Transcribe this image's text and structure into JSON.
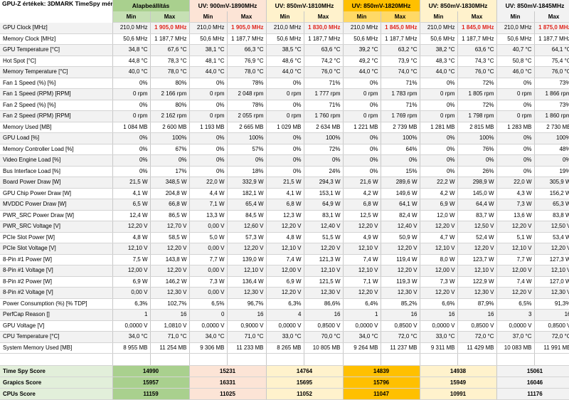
{
  "title": "GPU-Z értékek: 3DMARK TimeSpy mérés",
  "min_label": "Min",
  "max_label": "Max",
  "columns": [
    "Alapbeállítás",
    "UV: 900mV-1890MHz",
    "UV: 850mV-1810MHz",
    "UV: 850mV-1820MHz",
    "UV: 850mV-1830MHz",
    "UV: 850mV-1845MHz"
  ],
  "highlight_color": "#e0241b",
  "header_colors": [
    "#a9d08e",
    "#fce4d6",
    "#fff2cc",
    "#ffc000",
    "#fff2cc",
    "#f2f2f2"
  ],
  "rows": [
    {
      "label": "GPU Clock [MHz]",
      "values": [
        "210,0 MHz",
        "1 905,0 MHz",
        "210,0 MHz",
        "1 905,0 MHz",
        "210,0 MHz",
        "1 830,0 MHz",
        "210,0 MHz",
        "1 845,0 MHz",
        "210,0 MHz",
        "1 845,0 MHz",
        "210,0 MHz",
        "1 875,0 MHz"
      ],
      "highlight_max": true
    },
    {
      "label": "Memory Clock [MHz]",
      "values": [
        "50,6 MHz",
        "1 187,7 MHz",
        "50,6 MHz",
        "1 187,7 MHz",
        "50,6 MHz",
        "1 187,7 MHz",
        "50,6 MHz",
        "1 187,7 MHz",
        "50,6 MHz",
        "1 187,7 MHz",
        "50,6 MHz",
        "1 187,7 MHz"
      ]
    },
    {
      "label": "GPU Temperature [°C]",
      "values": [
        "34,8 °C",
        "67,6 °C",
        "38,1 °C",
        "66,3 °C",
        "38,5 °C",
        "63,6 °C",
        "39,2 °C",
        "63,2 °C",
        "38,2 °C",
        "63,6 °C",
        "40,7 °C",
        "64,1 °C"
      ]
    },
    {
      "label": "Hot Spot [°C]",
      "values": [
        "44,8 °C",
        "78,3 °C",
        "48,1 °C",
        "76,9 °C",
        "48,6 °C",
        "74,2 °C",
        "49,2 °C",
        "73,9 °C",
        "48,3 °C",
        "74,3 °C",
        "50,8 °C",
        "75,4 °C"
      ]
    },
    {
      "label": "Memory Temperature [°C]",
      "values": [
        "40,0 °C",
        "78,0 °C",
        "44,0 °C",
        "78,0 °C",
        "44,0 °C",
        "76,0 °C",
        "44,0 °C",
        "74,0 °C",
        "44,0 °C",
        "76,0 °C",
        "46,0 °C",
        "76,0 °C"
      ]
    },
    {
      "label": "Fan 1 Speed (%) [%]",
      "values": [
        "0%",
        "80%",
        "0%",
        "78%",
        "0%",
        "71%",
        "0%",
        "71%",
        "0%",
        "72%",
        "0%",
        "73%"
      ]
    },
    {
      "label": "Fan 1 Speed (RPM) [RPM]",
      "values": [
        "0 rpm",
        "2 166 rpm",
        "0 rpm",
        "2 048 rpm",
        "0 rpm",
        "1 777 rpm",
        "0 rpm",
        "1 783 rpm",
        "0 rpm",
        "1 805 rpm",
        "0 rpm",
        "1 866 rpm"
      ]
    },
    {
      "label": "Fan 2 Speed (%) [%]",
      "values": [
        "0%",
        "80%",
        "0%",
        "78%",
        "0%",
        "71%",
        "0%",
        "71%",
        "0%",
        "72%",
        "0%",
        "73%"
      ]
    },
    {
      "label": "Fan 2 Speed (RPM) [RPM]",
      "values": [
        "0 rpm",
        "2 162 rpm",
        "0 rpm",
        "2 055 rpm",
        "0 rpm",
        "1 760 rpm",
        "0 rpm",
        "1 769 rpm",
        "0 rpm",
        "1 798 rpm",
        "0 rpm",
        "1 860 rpm"
      ]
    },
    {
      "label": "Memory Used [MB]",
      "values": [
        "1 084 MB",
        "2 600 MB",
        "1 193 MB",
        "2 665 MB",
        "1 029 MB",
        "2 634 MB",
        "1 221 MB",
        "2 739 MB",
        "1 281 MB",
        "2 815 MB",
        "1 283 MB",
        "2 730 MB"
      ]
    },
    {
      "label": "GPU Load [%]",
      "values": [
        "0%",
        "100%",
        "0%",
        "100%",
        "0%",
        "100%",
        "0%",
        "100%",
        "0%",
        "100%",
        "0%",
        "100%"
      ]
    },
    {
      "label": "Memory Controller Load [%]",
      "values": [
        "0%",
        "67%",
        "0%",
        "57%",
        "0%",
        "72%",
        "0%",
        "64%",
        "0%",
        "76%",
        "0%",
        "48%"
      ]
    },
    {
      "label": "Video Engine Load [%]",
      "values": [
        "0%",
        "0%",
        "0%",
        "0%",
        "0%",
        "0%",
        "0%",
        "0%",
        "0%",
        "0%",
        "0%",
        "0%"
      ]
    },
    {
      "label": "Bus Interface Load [%]",
      "values": [
        "0%",
        "17%",
        "0%",
        "18%",
        "0%",
        "24%",
        "0%",
        "15%",
        "0%",
        "26%",
        "0%",
        "19%"
      ]
    },
    {
      "label": "Board Power Draw [W]",
      "values": [
        "21,5 W",
        "348,5 W",
        "22,0 W",
        "332,9 W",
        "21,5 W",
        "294,3 W",
        "21,6 W",
        "289,6 W",
        "22,2 W",
        "298,9 W",
        "22,0 W",
        "305,9 W"
      ]
    },
    {
      "label": "GPU Chip Power Draw [W]",
      "values": [
        "4,1 W",
        "204,8 W",
        "4,4 W",
        "182,1 W",
        "4,1 W",
        "153,1 W",
        "4,2 W",
        "149,6 W",
        "4,2 W",
        "145,0 W",
        "4,3 W",
        "156,2 W"
      ]
    },
    {
      "label": "MVDDC Power Draw [W]",
      "values": [
        "6,5 W",
        "66,8 W",
        "7,1 W",
        "65,4 W",
        "6,8 W",
        "64,9 W",
        "6,8 W",
        "64,1 W",
        "6,9 W",
        "64,4 W",
        "7,3 W",
        "65,3 W"
      ]
    },
    {
      "label": "PWR_SRC Power Draw [W]",
      "values": [
        "12,4 W",
        "86,5 W",
        "13,3 W",
        "84,5 W",
        "12,3 W",
        "83,1 W",
        "12,5 W",
        "82,4 W",
        "12,0 W",
        "83,7 W",
        "13,6 W",
        "83,8 W"
      ]
    },
    {
      "label": "PWR_SRC Voltage [V]",
      "values": [
        "12,20 V",
        "12,70 V",
        "0,00 V",
        "12,60 V",
        "12,20 V",
        "12,40 V",
        "12,20 V",
        "12,40 V",
        "12,20 V",
        "12,50 V",
        "12,20 V",
        "12,50 V"
      ]
    },
    {
      "label": "PCIe Slot Power [W]",
      "values": [
        "4,8 W",
        "58,5 W",
        "5,0 W",
        "57,3 W",
        "4,8 W",
        "51,5 W",
        "4,9 W",
        "50,9 W",
        "4,7 W",
        "52,4 W",
        "5,1 W",
        "53,4 W"
      ]
    },
    {
      "label": "PCIe Slot Voltage [V]",
      "values": [
        "12,10 V",
        "12,20 V",
        "0,00 V",
        "12,20 V",
        "12,10 V",
        "12,20 V",
        "12,10 V",
        "12,20 V",
        "12,10 V",
        "12,20 V",
        "12,10 V",
        "12,20 V"
      ]
    },
    {
      "label": "8-Pin #1 Power [W]",
      "values": [
        "7,5 W",
        "143,8 W",
        "7,7 W",
        "139,0 W",
        "7,4 W",
        "121,3 W",
        "7,4 W",
        "119,4 W",
        "8,0 W",
        "123,7 W",
        "7,7 W",
        "127,3 W"
      ]
    },
    {
      "label": "8-Pin #1 Voltage [V]",
      "values": [
        "12,00 V",
        "12,20 V",
        "0,00 V",
        "12,10 V",
        "12,00 V",
        "12,10 V",
        "12,10 V",
        "12,20 V",
        "12,00 V",
        "12,10 V",
        "12,00 V",
        "12,10 V"
      ]
    },
    {
      "label": "8-Pin #2 Power [W]",
      "values": [
        "6,9 W",
        "146,2 W",
        "7,3 W",
        "136,4 W",
        "6,9 W",
        "121,5 W",
        "7,1 W",
        "119,3 W",
        "7,3 W",
        "122,9 W",
        "7,4 W",
        "127,0 W"
      ]
    },
    {
      "label": "8-Pin #2 Voltage [V]",
      "values": [
        "0,00 V",
        "12,30 V",
        "0,00 V",
        "12,30 V",
        "12,20 V",
        "12,30 V",
        "12,20 V",
        "12,30 V",
        "12,20 V",
        "12,30 V",
        "12,20 V",
        "12,30 V"
      ]
    },
    {
      "label": "Power Consumption (%) [% TDP]",
      "values": [
        "6,3%",
        "102,7%",
        "6,5%",
        "96,7%",
        "6,3%",
        "86,6%",
        "6,4%",
        "85,2%",
        "6,6%",
        "87,9%",
        "6,5%",
        "91,3%"
      ]
    },
    {
      "label": "PerfCap Reason []",
      "values": [
        "1",
        "16",
        "0",
        "16",
        "4",
        "16",
        "1",
        "16",
        "16",
        "16",
        "3",
        "16"
      ]
    },
    {
      "label": "GPU Voltage [V]",
      "values": [
        "0,0000 V",
        "1,0810 V",
        "0,0000 V",
        "0,9000 V",
        "0,0000 V",
        "0,8500 V",
        "0,0000 V",
        "0,8500 V",
        "0,0000 V",
        "0,8500 V",
        "0,0000 V",
        "0,8500 V"
      ]
    },
    {
      "label": "CPU Temperature [°C]",
      "values": [
        "34,0 °C",
        "71,0 °C",
        "34,0 °C",
        "71,0 °C",
        "33,0 °C",
        "70,0 °C",
        "34,0 °C",
        "72,0 °C",
        "33,0 °C",
        "72,0 °C",
        "37,0 °C",
        "72,0 °C"
      ]
    },
    {
      "label": "System Memory Used [MB]",
      "values": [
        "8 955 MB",
        "11 254 MB",
        "9 306 MB",
        "11 233 MB",
        "8 265 MB",
        "10 805 MB",
        "9 264 MB",
        "11 237 MB",
        "9 311 MB",
        "11 429 MB",
        "10 083 MB",
        "11 991 MB"
      ]
    }
  ],
  "scores": [
    {
      "label": "Time Spy Score",
      "values": [
        "14990",
        "15231",
        "14764",
        "14839",
        "14938",
        "15061"
      ]
    },
    {
      "label": "Grapics Score",
      "values": [
        "15957",
        "16331",
        "15695",
        "15796",
        "15949",
        "16046"
      ]
    },
    {
      "label": "CPUs Score",
      "values": [
        "11159",
        "11025",
        "11052",
        "11047",
        "10991",
        "11176"
      ]
    }
  ]
}
